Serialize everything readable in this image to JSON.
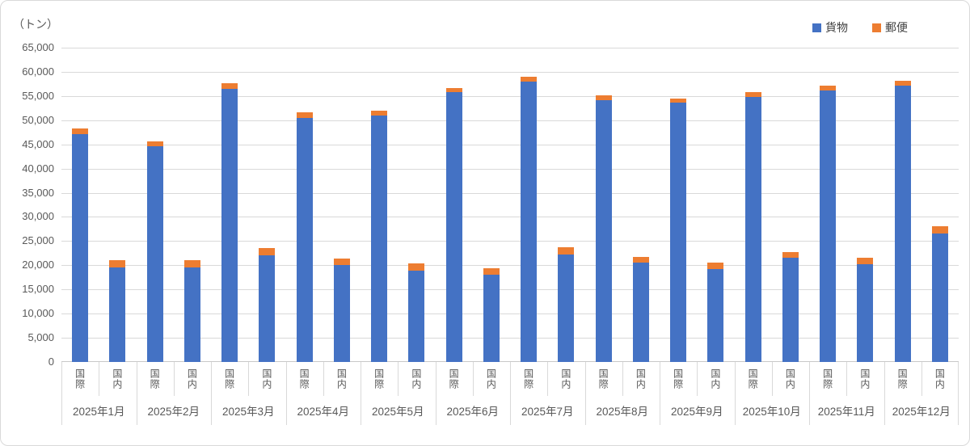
{
  "chart_data": {
    "type": "bar",
    "stacked": true,
    "title": "",
    "unit_label": "（トン）",
    "xlabel": "",
    "ylabel": "トン",
    "ylim": [
      0,
      65000
    ],
    "ytick_interval": 5000,
    "ytick_labels": [
      "0",
      "5,000",
      "10,000",
      "15,000",
      "20,000",
      "25,000",
      "30,000",
      "35,000",
      "40,000",
      "45,000",
      "50,000",
      "55,000",
      "60,000",
      "65,000"
    ],
    "grid": true,
    "legend_position": "top-right",
    "categories": [
      "2025年1月",
      "2025年2月",
      "2025年3月",
      "2025年4月",
      "2025年5月",
      "2025年6月",
      "2025年7月",
      "2025年8月",
      "2025年9月",
      "2025年10月",
      "2025年11月",
      "2025年12月"
    ],
    "sub_categories": [
      "国際",
      "国内"
    ],
    "series": [
      {
        "name": "貨物",
        "color": "#4472C4",
        "values": [
          [
            47200,
            44700,
            56400,
            50400,
            50900,
            55800,
            58000,
            54100,
            53700,
            54800,
            56200,
            57100
          ],
          [
            19500,
            19500,
            22000,
            20100,
            18900,
            18000,
            22300,
            20500,
            19200,
            21500,
            20300,
            26600
          ]
        ]
      },
      {
        "name": "郵便",
        "color": "#ED7D31",
        "values": [
          [
            1100,
            900,
            1200,
            1200,
            1000,
            900,
            1000,
            1100,
            800,
            1000,
            1000,
            1100
          ],
          [
            1600,
            1600,
            1600,
            1300,
            1500,
            1400,
            1500,
            1300,
            1300,
            1200,
            1200,
            1500
          ]
        ]
      }
    ],
    "colors": {
      "gridline": "#D9D9D9",
      "axis_text": "#595959",
      "legend_text": "#404040"
    }
  }
}
